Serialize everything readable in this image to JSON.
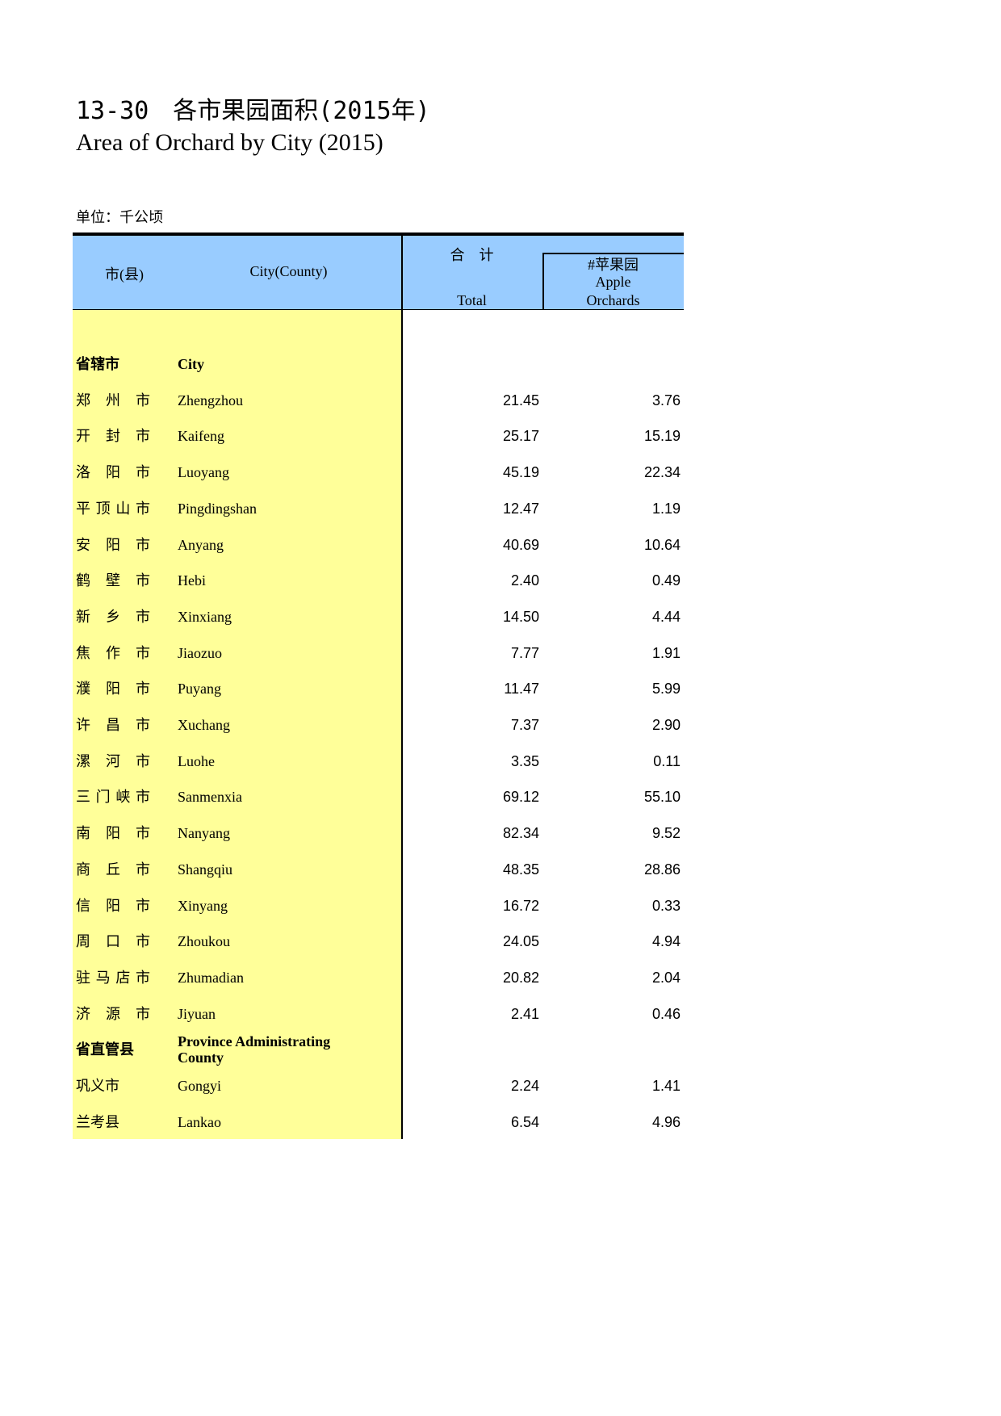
{
  "header": {
    "title_cn": "13-30　各市果园面积(2015年)",
    "title_en": "Area of Orchard by City (2015)",
    "unit": "单位：千公顷"
  },
  "table": {
    "columns": {
      "name_cn": "市(县)",
      "name_en": "City(County)",
      "total_cn": "合　计",
      "total_en": "Total",
      "apple_cn": "#苹果园",
      "apple_en": "Apple Orchards"
    },
    "rows": [
      {
        "cn": "省辖市",
        "en": "City",
        "section": true
      },
      {
        "cn": "郑州市",
        "en": "Zhengzhou",
        "total": "21.45",
        "apple": "3.76"
      },
      {
        "cn": "开封市",
        "en": "Kaifeng",
        "total": "25.17",
        "apple": "15.19"
      },
      {
        "cn": "洛阳市",
        "en": "Luoyang",
        "total": "45.19",
        "apple": "22.34"
      },
      {
        "cn": "平顶山市",
        "en": "Pingdingshan",
        "total": "12.47",
        "apple": "1.19"
      },
      {
        "cn": "安阳市",
        "en": "Anyang",
        "total": "40.69",
        "apple": "10.64"
      },
      {
        "cn": "鹤壁市",
        "en": "Hebi",
        "total": "2.40",
        "apple": "0.49"
      },
      {
        "cn": "新乡市",
        "en": "Xinxiang",
        "total": "14.50",
        "apple": "4.44"
      },
      {
        "cn": "焦作市",
        "en": "Jiaozuo",
        "total": "7.77",
        "apple": "1.91"
      },
      {
        "cn": "濮阳市",
        "en": "Puyang",
        "total": "11.47",
        "apple": "5.99"
      },
      {
        "cn": "许昌市",
        "en": "Xuchang",
        "total": "7.37",
        "apple": "2.90"
      },
      {
        "cn": "漯河市",
        "en": "Luohe",
        "total": "3.35",
        "apple": "0.11"
      },
      {
        "cn": "三门峡市",
        "en": "Sanmenxia",
        "total": "69.12",
        "apple": "55.10"
      },
      {
        "cn": "南阳市",
        "en": "Nanyang",
        "total": "82.34",
        "apple": "9.52"
      },
      {
        "cn": "商丘市",
        "en": "Shangqiu",
        "total": "48.35",
        "apple": "28.86"
      },
      {
        "cn": "信阳市",
        "en": "Xinyang",
        "total": "16.72",
        "apple": "0.33"
      },
      {
        "cn": "周口市",
        "en": "Zhoukou",
        "total": "24.05",
        "apple": "4.94"
      },
      {
        "cn": "驻马店市",
        "en": "Zhumadian",
        "total": "20.82",
        "apple": "2.04"
      },
      {
        "cn": "济源市",
        "en": "Jiyuan",
        "total": "2.41",
        "apple": "0.46"
      },
      {
        "cn": "省直管县",
        "en": "Province Administrating County",
        "section": true
      },
      {
        "cn": "巩义市",
        "en": "Gongyi",
        "total": "2.24",
        "apple": "1.41",
        "plain": true
      },
      {
        "cn": "兰考县",
        "en": "Lankao",
        "total": "6.54",
        "apple": "4.96",
        "plain": true
      }
    ]
  }
}
